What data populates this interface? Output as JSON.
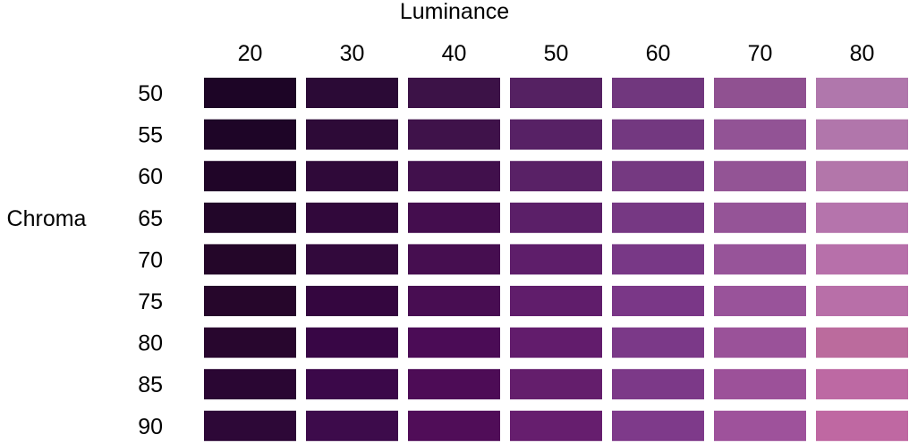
{
  "chart_data": {
    "type": "heatmap",
    "title": "",
    "xlabel": "Luminance",
    "ylabel": "Chroma",
    "x": [
      20,
      30,
      40,
      50,
      60,
      70,
      80
    ],
    "y": [
      50,
      55,
      60,
      65,
      70,
      75,
      80,
      85,
      90
    ],
    "cells": [
      [
        "#1d0526",
        "#2b0a36",
        "#3c1247",
        "#552162",
        "#71377e",
        "#905191",
        "#b077ac"
      ],
      [
        "#1e0527",
        "#2d0a37",
        "#3f124a",
        "#572165",
        "#733880",
        "#925395",
        "#b176ab"
      ],
      [
        "#200528",
        "#2f0939",
        "#41104c",
        "#592166",
        "#753981",
        "#935495",
        "#b376aa"
      ],
      [
        "#220629",
        "#31083b",
        "#440d4e",
        "#5b1f68",
        "#763883",
        "#955497",
        "#b574ac"
      ],
      [
        "#240629",
        "#32093c",
        "#460e50",
        "#5e1e6a",
        "#783886",
        "#975499",
        "#b770aa"
      ],
      [
        "#26062b",
        "#34063f",
        "#480d52",
        "#601d6b",
        "#7a3787",
        "#99539a",
        "#b86fa8"
      ],
      [
        "#28062e",
        "#380645",
        "#4b0c56",
        "#621c6c",
        "#7b3988",
        "#9a5299",
        "#bb6b9d"
      ],
      [
        "#2a0633",
        "#3b0849",
        "#4d0c56",
        "#641e6c",
        "#7c3988",
        "#9c5199",
        "#bd69a3"
      ],
      [
        "#2d0837",
        "#3d0b4b",
        "#500d58",
        "#661e6e",
        "#7e3a8a",
        "#9e529b",
        "#bf68a2"
      ]
    ]
  }
}
